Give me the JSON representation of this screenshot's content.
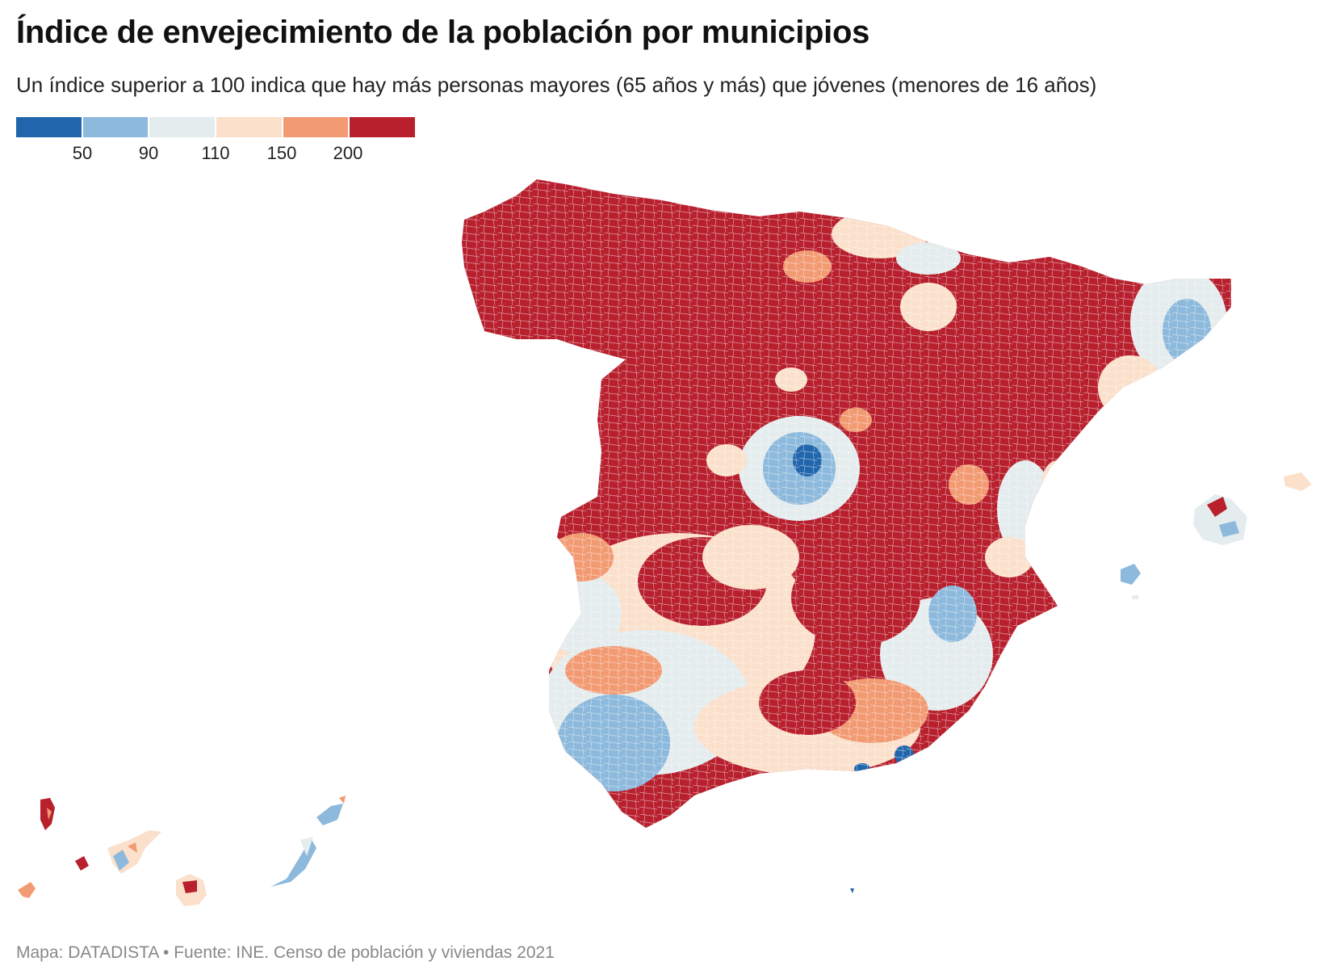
{
  "title": "Índice de envejecimiento de la población por municipios",
  "subtitle": "Un índice superior a 100 indica que hay más personas mayores (65 años y más) que jóvenes (menores de 16 años)",
  "legend": {
    "colors": [
      "#2166ac",
      "#8cb9dc",
      "#e4eced",
      "#fbe0cb",
      "#f29a72",
      "#b8202e"
    ],
    "ticks": [
      "50",
      "90",
      "110",
      "150",
      "200"
    ]
  },
  "source": "Mapa: DATADISTA • Fuente: INE. Censo de población y viviendas 2021",
  "map": {
    "country": "Spain",
    "regions": [
      {
        "name": "mainland-north",
        "class": ">200"
      },
      {
        "name": "madrid-area",
        "class": "50-110"
      },
      {
        "name": "catalonia-coast",
        "class": "90-150"
      },
      {
        "name": "andalusia-west",
        "class": "90-150"
      },
      {
        "name": "balearic-islands",
        "class": "90-200"
      },
      {
        "name": "canary-islands",
        "class": "90-200"
      }
    ]
  }
}
